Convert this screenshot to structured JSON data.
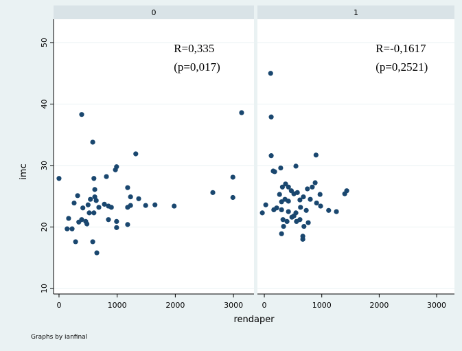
{
  "chart_data": [
    {
      "type": "scatter",
      "title": "0",
      "color": "#1a476f",
      "annotations": [
        "R=0,335",
        "(p=0,017)"
      ],
      "x": [
        0,
        390,
        580,
        3140,
        1320,
        990,
        970,
        815,
        600,
        320,
        615,
        1180,
        1230,
        1370,
        1230,
        1180,
        1490,
        1650,
        1980,
        2645,
        2990,
        2990,
        260,
        410,
        500,
        540,
        615,
        640,
        685,
        780,
        850,
        900,
        520,
        600,
        165,
        390,
        460,
        480,
        850,
        990,
        1180,
        140,
        225,
        990,
        285,
        580,
        650,
        340
      ],
      "y": [
        27.9,
        38.3,
        33.8,
        38.6,
        31.9,
        29.8,
        29.3,
        28.2,
        27.9,
        25.1,
        26.1,
        26.4,
        24.9,
        24.6,
        23.5,
        23.2,
        23.5,
        23.6,
        23.4,
        25.6,
        28.1,
        24.8,
        23.9,
        23.1,
        23.6,
        24.5,
        24.9,
        24.3,
        23.2,
        23.7,
        23.4,
        23.2,
        22.3,
        22.3,
        21.4,
        21.2,
        20.9,
        20.5,
        21.2,
        20.9,
        20.4,
        19.7,
        19.7,
        19.9,
        17.6,
        17.6,
        15.8,
        20.8
      ],
      "xlim": [
        -94,
        3353
      ],
      "ylim": [
        9.1,
        53.8
      ],
      "xticks": [
        0,
        1000,
        2000,
        3000
      ],
      "yticks": [
        10,
        20,
        30,
        40,
        50
      ]
    },
    {
      "type": "scatter",
      "title": "1",
      "color": "#1a476f",
      "annotations": [
        "R=-0,1617",
        "(p=0,2521)"
      ],
      "x": [
        110,
        120,
        120,
        155,
        180,
        285,
        550,
        900,
        -35,
        25,
        165,
        215,
        265,
        315,
        370,
        420,
        470,
        300,
        360,
        420,
        515,
        575,
        620,
        680,
        750,
        835,
        885,
        800,
        910,
        980,
        970,
        1120,
        1255,
        1400,
        1435,
        300,
        420,
        515,
        550,
        630,
        730,
        325,
        395,
        480,
        560,
        620,
        690,
        335,
        300,
        670,
        670,
        765
      ],
      "y": [
        45.0,
        37.9,
        31.6,
        29.1,
        29.0,
        29.6,
        29.9,
        31.7,
        22.3,
        23.6,
        22.8,
        23.1,
        25.3,
        26.5,
        27.0,
        26.5,
        25.9,
        24.1,
        24.5,
        24.2,
        25.4,
        25.6,
        24.4,
        24.9,
        26.2,
        26.5,
        27.2,
        24.5,
        23.9,
        23.4,
        25.3,
        22.7,
        22.5,
        25.4,
        25.9,
        22.8,
        22.5,
        21.8,
        22.3,
        23.2,
        22.7,
        21.2,
        20.9,
        21.6,
        20.9,
        21.2,
        20.1,
        20.1,
        18.9,
        18.5,
        18.0,
        20.7
      ],
      "xlim": [
        -120,
        3310
      ],
      "ylim": [
        9.1,
        53.8
      ],
      "xticks": [
        0,
        1000,
        2000,
        3000
      ],
      "yticks": [
        10,
        20,
        30,
        40,
        50
      ]
    }
  ],
  "x_label": "rendaper",
  "y_label": "imc",
  "note": "Graphs by ianfinal"
}
